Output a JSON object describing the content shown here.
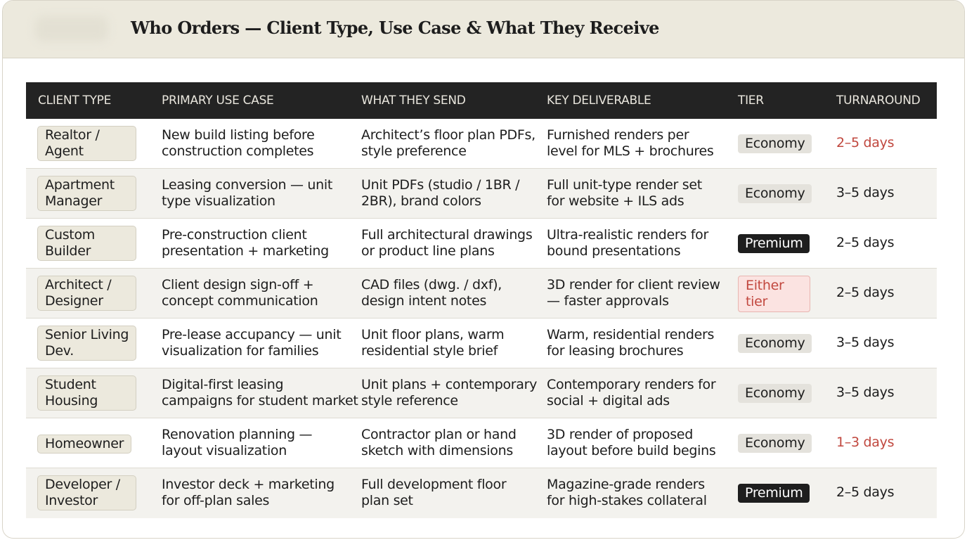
{
  "title": "Who Orders — Client Type, Use Case & What They Receive",
  "columns": [
    "CLIENT TYPE",
    "PRIMARY USE CASE",
    "WHAT THEY SEND",
    "KEY DELIVERABLE",
    "TIER",
    "TURNAROUND"
  ],
  "colors": {
    "header_bg": "#232323",
    "accent_red": "#c0473e",
    "premium_bg": "#1e1e1e",
    "badge_bg": "#ece9dd"
  },
  "rows": [
    {
      "client": [
        "Realtor /",
        "Agent"
      ],
      "use_case": [
        "New build listing before",
        "construction completes"
      ],
      "sends": [
        "Architect’s floor plan PDFs,",
        "style preference"
      ],
      "deliverable": [
        "Furnished renders per",
        "level for MLS + brochures"
      ],
      "tier": "Economy",
      "tier_style": "economy",
      "turnaround": "2–5 days",
      "turn_highlight": true
    },
    {
      "client": [
        "Apartment",
        "Manager"
      ],
      "use_case": [
        "Leasing conversion — unit",
        "type visualization"
      ],
      "sends": [
        "Unit PDFs (studio / 1BR /",
        "2BR), brand colors"
      ],
      "deliverable": [
        "Full unit-type render set",
        "for website + ILS ads"
      ],
      "tier": "Economy",
      "tier_style": "economy",
      "turnaround": "3–5 days",
      "turn_highlight": false
    },
    {
      "client": [
        "Custom",
        "Builder"
      ],
      "use_case": [
        "Pre-construction client",
        "presentation + marketing"
      ],
      "sends": [
        "Full architectural drawings",
        "or product line plans"
      ],
      "deliverable": [
        "Ultra-realistic renders for",
        "bound presentations"
      ],
      "tier": "Premium",
      "tier_style": "premium",
      "turnaround": "2–5 days",
      "turn_highlight": false
    },
    {
      "client": [
        "Architect /",
        "Designer"
      ],
      "use_case": [
        "Client design sign-off +",
        "concept communication"
      ],
      "sends": [
        "CAD files (dwg. / dxf),",
        "design intent notes"
      ],
      "deliverable": [
        "3D render for client review",
        "— faster approvals"
      ],
      "tier": "Either tier",
      "tier_style": "either",
      "turnaround": "2–5 days",
      "turn_highlight": false
    },
    {
      "client": [
        "Senior Living",
        "Dev."
      ],
      "use_case": [
        "Pre-lease accupancy — unit",
        "visualization for families"
      ],
      "sends": [
        "Unit floor plans, warm",
        "residential style brief"
      ],
      "deliverable": [
        "Warm, residential renders",
        "for leasing brochures"
      ],
      "tier": "Economy",
      "tier_style": "economy",
      "turnaround": "3–5 days",
      "turn_highlight": false
    },
    {
      "client": [
        "Student",
        "Housing"
      ],
      "use_case": [
        "Digital-first leasing",
        "campaigns for student market"
      ],
      "sends": [
        "Unit plans + contemporary",
        "style reference"
      ],
      "deliverable": [
        "Contemporary renders for",
        "social + digital ads"
      ],
      "tier": "Economy",
      "tier_style": "economy",
      "turnaround": "3–5 days",
      "turn_highlight": false
    },
    {
      "client": [
        "Homeowner"
      ],
      "use_case": [
        "Renovation planning —",
        "layout visualization"
      ],
      "sends": [
        "Contractor plan or hand",
        "sketch with dimensions"
      ],
      "deliverable": [
        "3D render of proposed",
        "layout before build begins"
      ],
      "tier": "Economy",
      "tier_style": "economy",
      "turnaround": "1–3 days",
      "turn_highlight": true
    },
    {
      "client": [
        "Developer /",
        "Investor"
      ],
      "use_case": [
        "Investor deck + marketing",
        "for off-plan sales"
      ],
      "sends": [
        "Full development floor",
        "plan set"
      ],
      "deliverable": [
        "Magazine-grade renders",
        "for high-stakes collateral"
      ],
      "tier": "Premium",
      "tier_style": "premium",
      "turnaround": "2–5 days",
      "turn_highlight": false
    }
  ]
}
